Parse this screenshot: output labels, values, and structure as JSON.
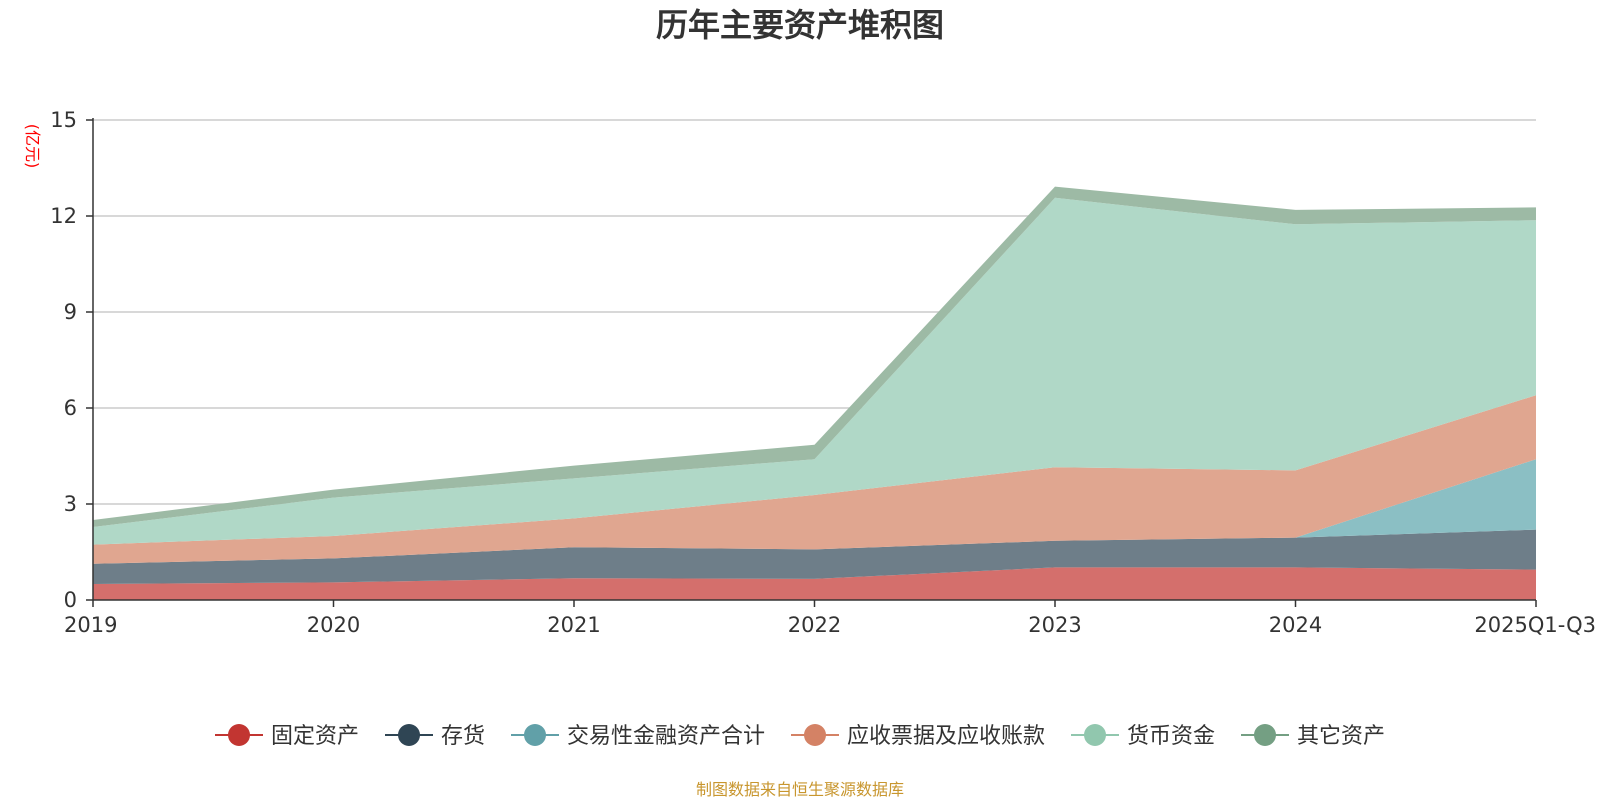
{
  "chart_data": {
    "type": "area",
    "stacked": true,
    "title": "历年主要资产堆积图",
    "ylabel": "(亿元)",
    "xlabel": "",
    "ylim": [
      0,
      15
    ],
    "yticks": [
      0,
      3,
      6,
      9,
      12,
      15
    ],
    "categories": [
      "2019",
      "2020",
      "2021",
      "2022",
      "2023",
      "2024",
      "2025Q1-Q3"
    ],
    "series": [
      {
        "name": "固定资产",
        "color": "#d46f6c",
        "legend_color": "#c23531",
        "values": [
          0.5,
          0.55,
          0.68,
          0.66,
          1.02,
          1.02,
          0.95
        ]
      },
      {
        "name": "存货",
        "color": "#6e7e89",
        "legend_color": "#2f4554",
        "values": [
          0.63,
          0.75,
          0.97,
          0.92,
          0.83,
          0.93,
          1.25
        ]
      },
      {
        "name": "交易性金融资产合计",
        "color": "#8bbfc4",
        "legend_color": "#61a0a8",
        "values": [
          0,
          0,
          0,
          0,
          0,
          0,
          2.2
        ]
      },
      {
        "name": "应收票据及应收账款",
        "color": "#e0a690",
        "legend_color": "#d48265",
        "values": [
          0.6,
          0.7,
          0.9,
          1.7,
          2.3,
          2.1,
          2.0
        ]
      },
      {
        "name": "货币资金",
        "color": "#b0d8c7",
        "legend_color": "#91c7ae",
        "values": [
          0.55,
          1.2,
          1.25,
          1.12,
          8.42,
          7.69,
          5.47
        ]
      },
      {
        "name": "其它资产",
        "color": "#9dbaa5",
        "legend_color": "#749f83",
        "values": [
          0.22,
          0.25,
          0.4,
          0.45,
          0.35,
          0.45,
          0.4
        ]
      }
    ],
    "legend_position": "bottom-center",
    "grid": true
  },
  "footer": {
    "source": "制图数据来自恒生聚源数据库"
  }
}
